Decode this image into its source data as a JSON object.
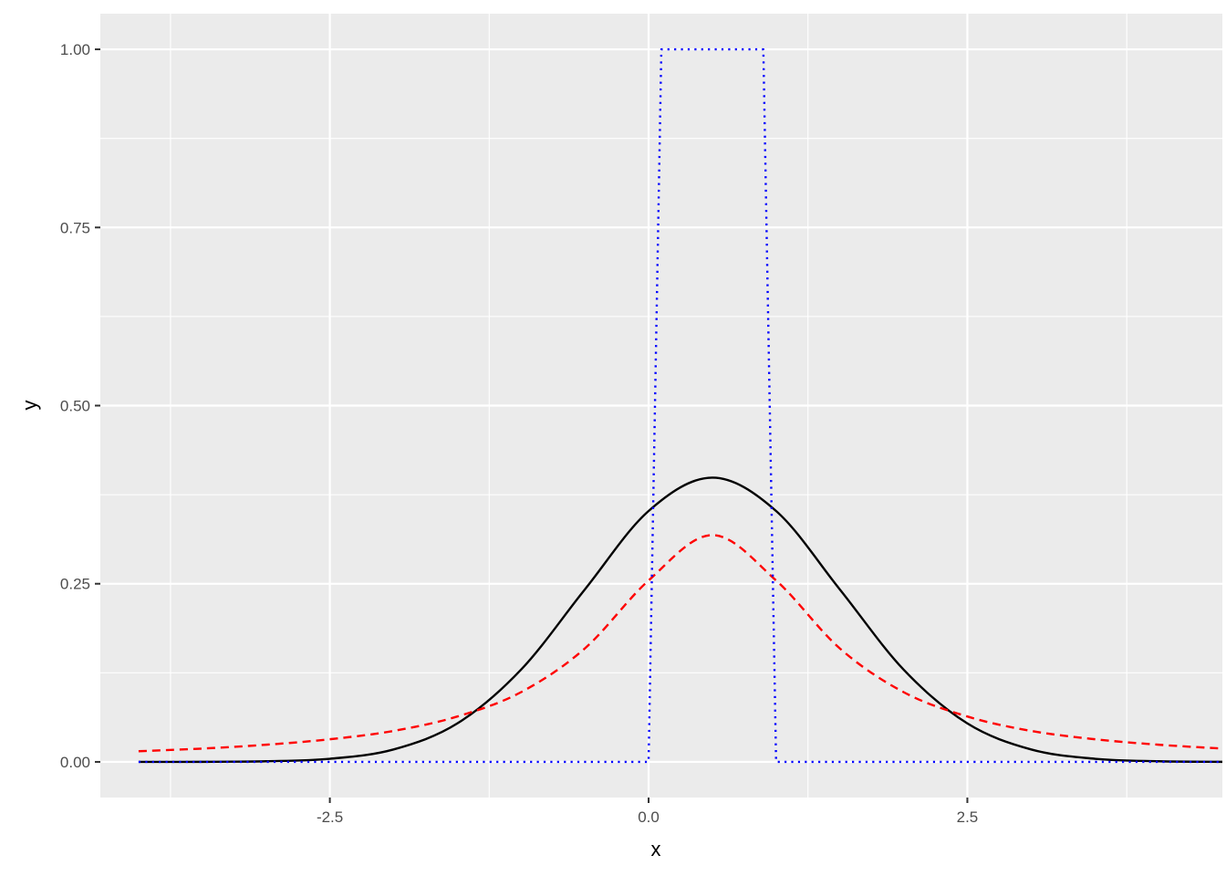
{
  "chart_data": {
    "type": "line",
    "title": "",
    "xlabel": "x",
    "ylabel": "y",
    "xlim": [
      -4.3,
      4.5
    ],
    "ylim": [
      -0.05,
      1.05
    ],
    "x_ticks": [
      -2.5,
      0.0,
      2.5
    ],
    "x_tick_labels": [
      "-2.5",
      "0.0",
      "2.5"
    ],
    "y_ticks": [
      0.0,
      0.25,
      0.5,
      0.75,
      1.0
    ],
    "y_tick_labels": [
      "0.00",
      "0.25",
      "0.50",
      "0.75",
      "1.00"
    ],
    "grid": true,
    "legend": "none",
    "background_color": "#ebebeb",
    "series": [
      {
        "style": "solid",
        "color": "#000000",
        "x": [
          -4,
          -3.5,
          -3,
          -2.5,
          -2,
          -1.5,
          -1,
          -0.5,
          0,
          0.5,
          1,
          1.5,
          2,
          2.5,
          3,
          3.5,
          4,
          4.5
        ],
        "values": [
          0.0,
          0.0001,
          0.0009,
          0.0044,
          0.0175,
          0.054,
          0.1295,
          0.242,
          0.3521,
          0.3989,
          0.3521,
          0.242,
          0.1295,
          0.054,
          0.0175,
          0.0044,
          0.0009,
          0.0001
        ]
      },
      {
        "style": "dashed",
        "color": "#ff0000",
        "x": [
          -4,
          -3.5,
          -3,
          -2.5,
          -2,
          -1.5,
          -1,
          -0.5,
          0,
          0.5,
          1,
          1.5,
          2,
          2.5,
          3,
          3.5,
          4,
          4.5
        ],
        "values": [
          0.015,
          0.0187,
          0.0241,
          0.0318,
          0.0435,
          0.0637,
          0.0979,
          0.1592,
          0.2546,
          0.3183,
          0.2546,
          0.1592,
          0.0979,
          0.0637,
          0.0435,
          0.0318,
          0.0241,
          0.0187
        ]
      },
      {
        "style": "dotted",
        "color": "#0000ff",
        "x": [
          -4,
          0,
          0.1,
          0.9,
          1.0,
          4.5
        ],
        "values": [
          0,
          0,
          1,
          1,
          0,
          0
        ]
      }
    ]
  }
}
